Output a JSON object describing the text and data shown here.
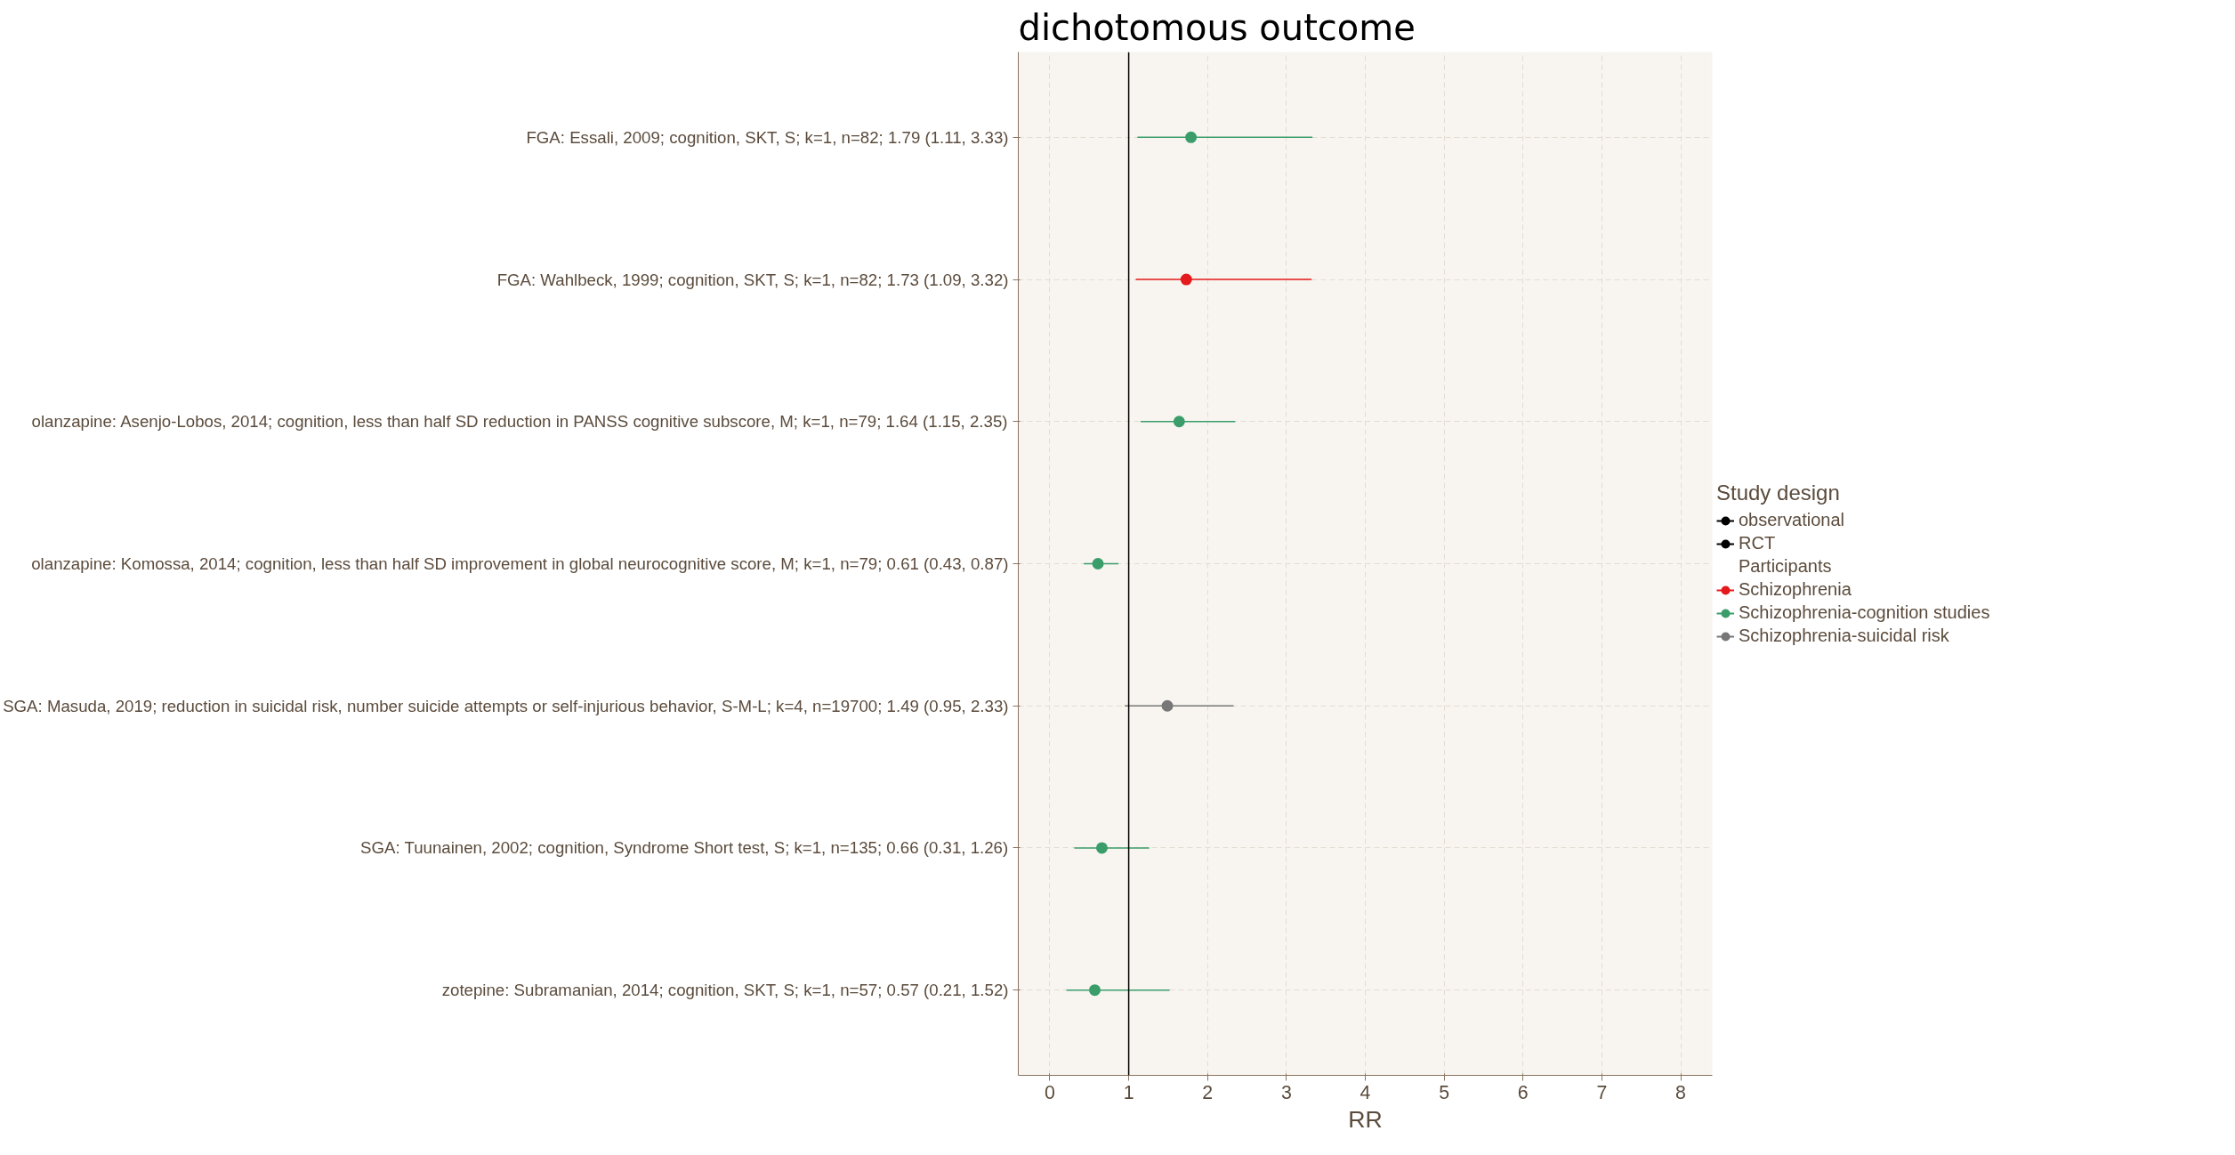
{
  "chart_data": {
    "type": "scatter",
    "orientation": "horizontal",
    "title": "dichotomous outcome",
    "xlabel": "RR",
    "annotations": [
      "Study design"
    ],
    "legend_title": "Participants",
    "categories": [
      "FGA: Essali, 2009; cognition, SKT, S; k=1, n=82; 1.79 (1.11, 3.33)",
      "FGA: Wahlbeck, 1999; cognition, SKT, S; k=1, n=82; 1.73 (1.09, 3.32)",
      "olanzapine: Asenjo-Lobos, 2014; cognition, less than half SD reduction in PANSS cognitive subscore, M; k=1, n=79; 1.64 (1.15, 2.35)",
      "olanzapine: Komossa, 2014; cognition, less than half SD improvement in global neurocognitive score, M; k=1, n=79; 0.61 (0.43, 0.87)",
      "SGA: Masuda, 2019; reduction in suicidal risk, number suicide attempts or self-injurious behavior, S-M-L; k=4, n=19700; 1.49 (0.95, 2.33)",
      "SGA: Tuunainen, 2002; cognition, Syndrome Short test, S; k=1, n=135; 0.66 (0.31, 1.26)",
      "zotepine: Subramanian, 2014; cognition, SKT, S; k=1, n=57; 0.57 (0.21, 1.52)"
    ],
    "xlim": [
      -0.4,
      8.4
    ],
    "xticks": [
      0,
      1,
      2,
      3,
      4,
      5,
      6,
      7,
      8
    ],
    "grid": true,
    "legend": "right",
    "marker": "circle",
    "ref_lines": [
      {
        "axis": "x",
        "value": 1,
        "color": "#000000"
      }
    ],
    "series": [
      {
        "name": "observational",
        "color": "#000000",
        "values": [
          null,
          null,
          null,
          null,
          null,
          null,
          null
        ]
      },
      {
        "name": "RCT",
        "color": "#000000",
        "values": [
          null,
          null,
          null,
          null,
          null,
          null,
          null
        ]
      },
      {
        "name": "Schizophrenia",
        "color": "#e41a1c",
        "values": [
          null,
          1.73,
          null,
          null,
          null,
          null,
          null
        ],
        "errors": [
          null,
          [
            1.09,
            3.32
          ],
          null,
          null,
          null,
          null,
          null
        ]
      },
      {
        "name": "Schizophrenia-cognition studies",
        "color": "#3a9d6a",
        "values": [
          1.79,
          null,
          1.64,
          0.61,
          null,
          0.66,
          0.57
        ],
        "errors": [
          [
            1.11,
            3.33
          ],
          null,
          [
            1.15,
            2.35
          ],
          [
            0.43,
            0.87
          ],
          null,
          [
            0.31,
            1.26
          ],
          [
            0.21,
            1.52
          ]
        ]
      },
      {
        "name": "Schizophrenia-suicidal risk",
        "color": "#777777",
        "values": [
          null,
          null,
          null,
          null,
          1.49,
          null,
          null
        ],
        "errors": [
          null,
          null,
          null,
          null,
          [
            0.95,
            2.33
          ],
          null,
          null
        ]
      }
    ]
  }
}
